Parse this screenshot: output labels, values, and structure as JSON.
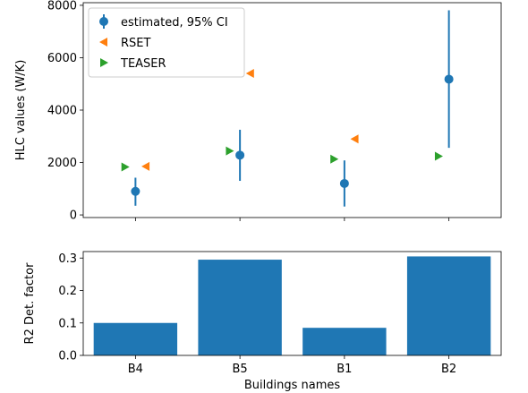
{
  "chart_data": [
    {
      "type": "scatter",
      "ylabel": "HLC values (W/K)",
      "xlabel": "",
      "ylim": [
        -100,
        8100
      ],
      "yticks": [
        0,
        2000,
        4000,
        6000,
        8000
      ],
      "categories": [
        "B4",
        "B5",
        "B1",
        "B2"
      ],
      "show_x_tick_labels": false,
      "grid": false,
      "legend_position": "top-left",
      "series": [
        {
          "name": "estimated, 95% CI",
          "marker": "circle",
          "color": "#1f77b4",
          "values": [
            900,
            2280,
            1200,
            5180
          ],
          "ci_low": [
            350,
            1300,
            320,
            2560
          ],
          "ci_high": [
            1420,
            3250,
            2080,
            7810
          ]
        },
        {
          "name": "RSET",
          "marker": "triangle-left",
          "color": "#ff7f0e",
          "values": [
            1850,
            5400,
            2900,
            null
          ],
          "x_offset": 0.1
        },
        {
          "name": "TEASER",
          "marker": "triangle-right",
          "color": "#2ca02c",
          "values": [
            1830,
            2440,
            2130,
            2240
          ],
          "x_offset": -0.1
        }
      ]
    },
    {
      "type": "bar",
      "categories": [
        "B4",
        "B5",
        "B1",
        "B2"
      ],
      "values": [
        0.1,
        0.295,
        0.085,
        0.305
      ],
      "color": "#1f77b4",
      "ylabel": "R2 Det. factor",
      "xlabel": "Buildings names",
      "ylim": [
        0,
        0.32
      ],
      "yticks": [
        0.0,
        0.1,
        0.2,
        0.3
      ],
      "ytick_labels": [
        "0.0",
        "0.1",
        "0.2",
        "0.3"
      ],
      "grid": false
    }
  ]
}
